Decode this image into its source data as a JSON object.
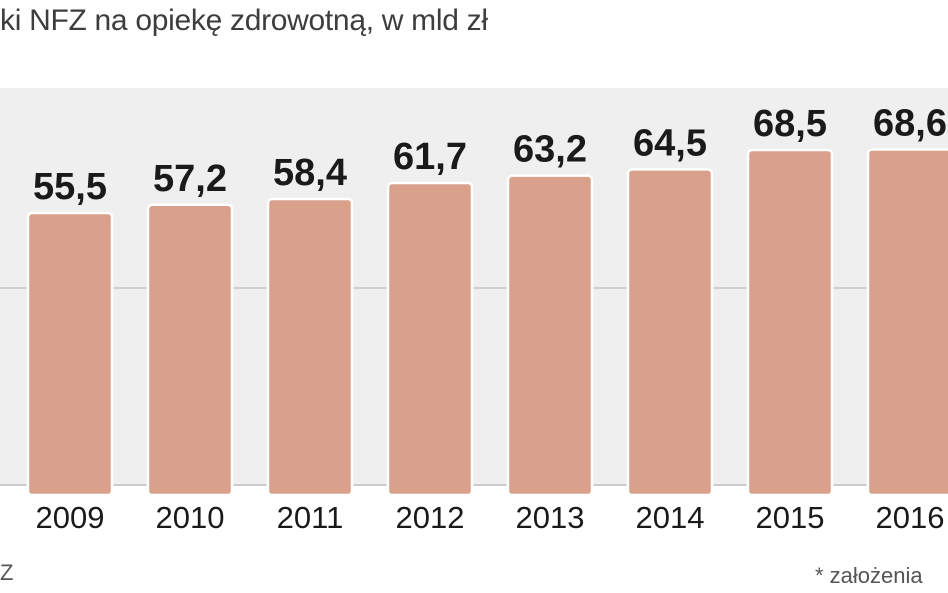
{
  "title": "ki NFZ na opiekę zdrowotną, w mld zł",
  "footnote_left": "Z",
  "footnote_right": "* założenia",
  "colors": {
    "bar_fill": "#d9a18c",
    "bar_stroke": "#ffffff",
    "plot_background": "#efefef",
    "gridline": "#c6c6c6",
    "text": "#1a1a1a"
  },
  "chart_data": {
    "type": "bar",
    "title": "ki NFZ na opiekę zdrowotną, w mld zł",
    "categories": [
      "2009",
      "2010",
      "2011",
      "2012",
      "2013",
      "2014",
      "2015",
      "2016"
    ],
    "value_labels": [
      "55,5",
      "57,2",
      "58,4",
      "61,7",
      "63,2",
      "64,5",
      "68,5",
      "68,6"
    ],
    "values": [
      55.5,
      57.2,
      58.4,
      61.7,
      63.2,
      64.5,
      68.5,
      68.6
    ],
    "xlabel": "",
    "ylabel": "",
    "grid": true,
    "legend": "none"
  }
}
